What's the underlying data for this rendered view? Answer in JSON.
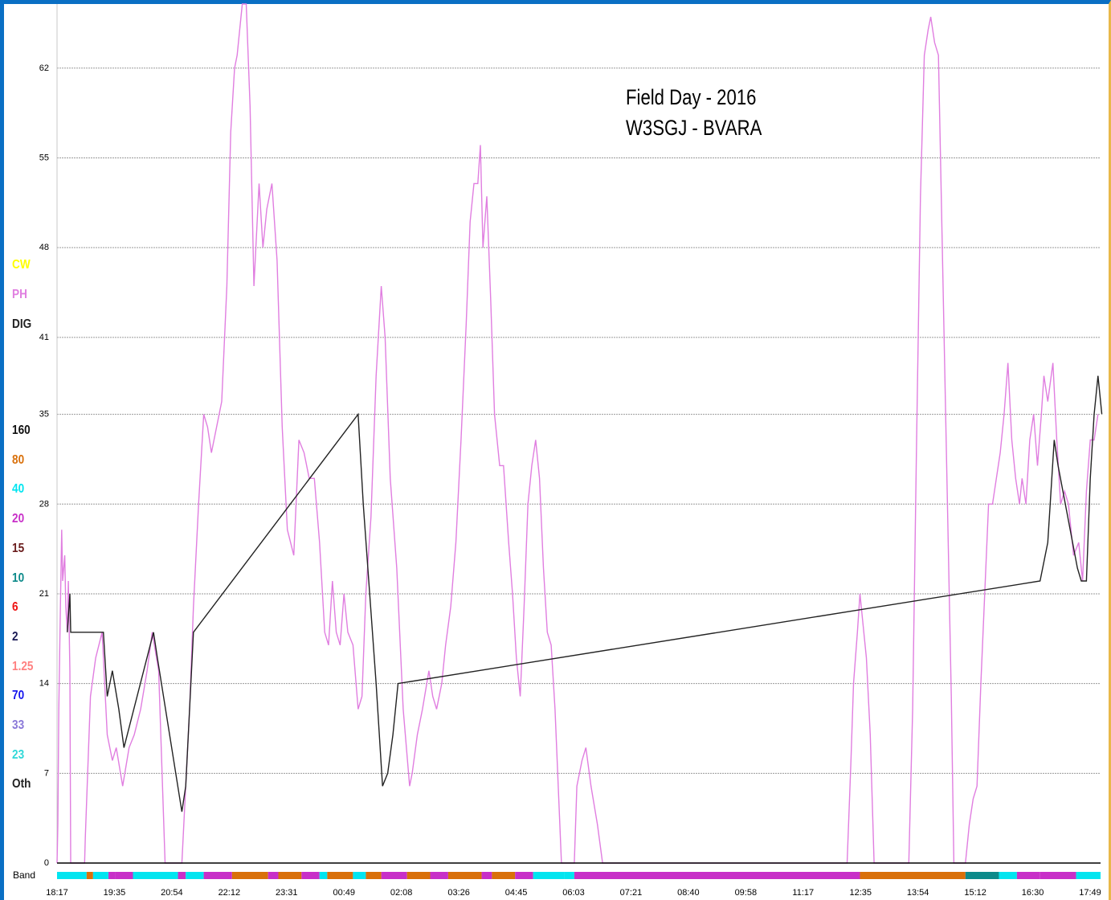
{
  "chart_data": {
    "type": "line",
    "title": "Field Day - 2016",
    "subtitle": "W3SGJ - BVARA",
    "xlabel": "",
    "ylabel": "",
    "ylim": [
      0,
      67
    ],
    "y_ticks": [
      0,
      7,
      14,
      21,
      28,
      35,
      41,
      48,
      55,
      62
    ],
    "x_tick_labels": [
      "18:17",
      "19:35",
      "20:54",
      "22:12",
      "23:31",
      "00:49",
      "02:08",
      "03:26",
      "04:45",
      "06:03",
      "07:21",
      "08:40",
      "09:58",
      "11:17",
      "12:35",
      "13:54",
      "15:12",
      "16:30",
      "17:49"
    ],
    "grid": true,
    "mode_legend": [
      {
        "label": "CW",
        "color": "#ffff00"
      },
      {
        "label": "PH",
        "color": "#e07ee0"
      },
      {
        "label": "DIG",
        "color": "#222222"
      }
    ],
    "band_legend": [
      {
        "label": "160",
        "color": "#111111"
      },
      {
        "label": "80",
        "color": "#d9700a"
      },
      {
        "label": "40",
        "color": "#00e5f0"
      },
      {
        "label": "20",
        "color": "#c82fc8"
      },
      {
        "label": "15",
        "color": "#6b1d1d"
      },
      {
        "label": "10",
        "color": "#0c8a8a"
      },
      {
        "label": "6",
        "color": "#ee1111"
      },
      {
        "label": "2",
        "color": "#1a1a55"
      },
      {
        "label": "1.25",
        "color": "#ff8080"
      },
      {
        "label": "70",
        "color": "#1515ee"
      },
      {
        "label": "33",
        "color": "#8a78d8"
      },
      {
        "label": "23",
        "color": "#30d8d8"
      },
      {
        "label": "Oth",
        "color": "#222222"
      }
    ],
    "band_axis_label": "Band",
    "series": [
      {
        "name": "PH",
        "color": "#e07ee0",
        "points": [
          [
            0,
            0
          ],
          [
            0.03,
            3
          ],
          [
            0.07,
            12
          ],
          [
            0.13,
            20
          ],
          [
            0.18,
            26
          ],
          [
            0.22,
            22
          ],
          [
            0.3,
            24
          ],
          [
            0.34,
            20
          ],
          [
            0.4,
            18
          ],
          [
            0.44,
            22
          ],
          [
            0.5,
            15
          ],
          [
            0.53,
            0
          ],
          [
            1.07,
            0
          ],
          [
            1.1,
            2
          ],
          [
            1.3,
            13
          ],
          [
            1.5,
            16
          ],
          [
            1.75,
            18
          ],
          [
            1.95,
            10
          ],
          [
            2.15,
            8
          ],
          [
            2.3,
            9
          ],
          [
            2.55,
            6
          ],
          [
            2.8,
            9
          ],
          [
            3.0,
            10
          ],
          [
            3.25,
            12
          ],
          [
            3.5,
            15
          ],
          [
            3.7,
            18
          ],
          [
            3.95,
            15
          ],
          [
            4.2,
            0
          ],
          [
            4.85,
            0
          ],
          [
            5.0,
            6
          ],
          [
            5.15,
            12
          ],
          [
            5.3,
            20
          ],
          [
            5.5,
            28
          ],
          [
            5.7,
            35
          ],
          [
            5.85,
            34
          ],
          [
            6.0,
            32
          ],
          [
            6.2,
            34
          ],
          [
            6.4,
            36
          ],
          [
            6.6,
            45
          ],
          [
            6.75,
            57
          ],
          [
            6.9,
            62
          ],
          [
            7.0,
            63
          ],
          [
            7.2,
            67
          ],
          [
            7.35,
            67
          ],
          [
            7.5,
            59
          ],
          [
            7.65,
            45
          ],
          [
            7.85,
            53
          ],
          [
            8.0,
            48
          ],
          [
            8.15,
            51
          ],
          [
            8.35,
            53
          ],
          [
            8.55,
            47
          ],
          [
            8.75,
            34
          ],
          [
            8.95,
            26
          ],
          [
            9.2,
            24
          ],
          [
            9.4,
            33
          ],
          [
            9.6,
            32
          ],
          [
            9.8,
            30
          ],
          [
            10.0,
            30
          ],
          [
            10.2,
            25
          ],
          [
            10.4,
            18
          ],
          [
            10.55,
            17
          ],
          [
            10.7,
            22
          ],
          [
            10.85,
            18
          ],
          [
            11.0,
            17
          ],
          [
            11.15,
            21
          ],
          [
            11.3,
            18
          ],
          [
            11.5,
            17
          ],
          [
            11.7,
            12
          ],
          [
            11.85,
            13
          ],
          [
            12.0,
            21
          ],
          [
            12.2,
            27
          ],
          [
            12.4,
            38
          ],
          [
            12.6,
            45
          ],
          [
            12.75,
            41
          ],
          [
            12.95,
            30
          ],
          [
            13.2,
            23
          ],
          [
            13.45,
            12
          ],
          [
            13.7,
            6
          ],
          [
            13.8,
            7
          ],
          [
            14.0,
            10
          ],
          [
            14.2,
            12
          ],
          [
            14.45,
            15
          ],
          [
            14.6,
            13
          ],
          [
            14.75,
            12
          ],
          [
            14.95,
            14
          ],
          [
            15.1,
            17
          ],
          [
            15.3,
            20
          ],
          [
            15.5,
            25
          ],
          [
            15.7,
            33
          ],
          [
            15.9,
            42
          ],
          [
            16.05,
            50
          ],
          [
            16.2,
            53
          ],
          [
            16.35,
            53
          ],
          [
            16.45,
            56
          ],
          [
            16.55,
            48
          ],
          [
            16.7,
            52
          ],
          [
            16.85,
            44
          ],
          [
            17.0,
            35
          ],
          [
            17.2,
            31
          ],
          [
            17.35,
            31
          ],
          [
            17.55,
            25
          ],
          [
            17.7,
            21
          ],
          [
            17.85,
            16
          ],
          [
            18.0,
            13
          ],
          [
            18.15,
            20
          ],
          [
            18.3,
            28
          ],
          [
            18.45,
            31
          ],
          [
            18.6,
            33
          ],
          [
            18.75,
            30
          ],
          [
            18.9,
            23
          ],
          [
            19.05,
            18
          ],
          [
            19.2,
            17
          ],
          [
            19.35,
            12
          ],
          [
            19.6,
            0
          ],
          [
            20.1,
            0
          ],
          [
            20.2,
            6
          ],
          [
            20.4,
            8
          ],
          [
            20.55,
            9
          ],
          [
            20.75,
            6
          ],
          [
            21.0,
            3
          ],
          [
            21.2,
            0
          ],
          [
            30.7,
            0
          ],
          [
            30.85,
            8
          ],
          [
            30.95,
            14
          ],
          [
            31.1,
            18
          ],
          [
            31.2,
            21
          ],
          [
            31.3,
            19
          ],
          [
            31.45,
            16
          ],
          [
            31.6,
            10
          ],
          [
            31.75,
            0
          ],
          [
            33.1,
            0
          ],
          [
            33.25,
            12
          ],
          [
            33.4,
            33
          ],
          [
            33.55,
            52
          ],
          [
            33.7,
            63
          ],
          [
            33.85,
            65
          ],
          [
            33.95,
            66
          ],
          [
            34.1,
            64
          ],
          [
            34.25,
            63
          ],
          [
            34.4,
            48
          ],
          [
            34.6,
            28
          ],
          [
            34.75,
            13
          ],
          [
            34.85,
            0
          ],
          [
            35.3,
            0
          ],
          [
            35.45,
            3
          ],
          [
            35.6,
            5
          ],
          [
            35.75,
            6
          ],
          [
            35.9,
            14
          ],
          [
            36.05,
            21
          ],
          [
            36.2,
            28
          ],
          [
            36.35,
            28
          ],
          [
            36.5,
            30
          ],
          [
            36.65,
            32
          ],
          [
            36.8,
            35
          ],
          [
            36.95,
            39
          ],
          [
            37.1,
            33
          ],
          [
            37.25,
            30
          ],
          [
            37.4,
            28
          ],
          [
            37.5,
            30
          ],
          [
            37.65,
            28
          ],
          [
            37.8,
            33
          ],
          [
            37.95,
            35
          ],
          [
            38.1,
            31
          ],
          [
            38.25,
            35
          ],
          [
            38.35,
            38
          ],
          [
            38.5,
            36
          ],
          [
            38.7,
            39
          ],
          [
            38.85,
            33
          ],
          [
            39.0,
            28
          ],
          [
            39.15,
            29
          ],
          [
            39.3,
            28
          ],
          [
            39.5,
            24
          ],
          [
            39.7,
            25
          ],
          [
            39.85,
            22
          ],
          [
            40.0,
            29
          ],
          [
            40.15,
            33
          ],
          [
            40.3,
            33
          ],
          [
            40.45,
            35
          ]
        ]
      },
      {
        "name": "DIG",
        "color": "#222222",
        "points": [
          [
            0.4,
            18
          ],
          [
            0.5,
            21
          ],
          [
            0.53,
            18
          ],
          [
            1.8,
            18
          ],
          [
            1.95,
            13
          ],
          [
            2.15,
            15
          ],
          [
            2.4,
            12
          ],
          [
            2.6,
            9
          ],
          [
            3.75,
            18
          ],
          [
            3.9,
            16
          ],
          [
            4.85,
            4
          ],
          [
            5.0,
            6
          ],
          [
            5.15,
            12
          ],
          [
            5.3,
            18
          ],
          [
            11.7,
            35
          ],
          [
            11.9,
            28
          ],
          [
            12.15,
            21
          ],
          [
            12.4,
            14
          ],
          [
            12.65,
            6
          ],
          [
            12.85,
            7
          ],
          [
            13.05,
            10
          ],
          [
            13.25,
            14
          ],
          [
            38.2,
            22
          ],
          [
            38.5,
            25
          ],
          [
            38.75,
            33
          ],
          [
            38.9,
            31
          ],
          [
            39.65,
            23
          ],
          [
            39.8,
            22
          ],
          [
            40.0,
            22
          ],
          [
            40.15,
            30
          ],
          [
            40.3,
            35
          ],
          [
            40.45,
            38
          ],
          [
            40.6,
            35
          ]
        ]
      }
    ],
    "band_strip": [
      [
        0,
        1.15,
        "#00e5f0"
      ],
      [
        1.15,
        1.4,
        "#d9700a"
      ],
      [
        1.4,
        2.0,
        "#00e5f0"
      ],
      [
        2.0,
        2.25,
        "#c82fc8"
      ],
      [
        2.25,
        2.95,
        "#c82fc8"
      ],
      [
        2.95,
        4.7,
        "#00e5f0"
      ],
      [
        4.7,
        5.0,
        "#c82fc8"
      ],
      [
        5.0,
        5.7,
        "#00e5f0"
      ],
      [
        5.7,
        6.8,
        "#c82fc8"
      ],
      [
        6.8,
        8.2,
        "#d9700a"
      ],
      [
        8.2,
        8.6,
        "#c82fc8"
      ],
      [
        8.6,
        9.5,
        "#d9700a"
      ],
      [
        9.5,
        10.2,
        "#c82fc8"
      ],
      [
        10.2,
        10.5,
        "#00e5f0"
      ],
      [
        10.5,
        11.5,
        "#d9700a"
      ],
      [
        11.5,
        12.0,
        "#00e5f0"
      ],
      [
        12.0,
        12.6,
        "#d9700a"
      ],
      [
        12.6,
        13.6,
        "#c82fc8"
      ],
      [
        13.6,
        14.5,
        "#d9700a"
      ],
      [
        14.5,
        15.2,
        "#c82fc8"
      ],
      [
        15.2,
        16.5,
        "#d9700a"
      ],
      [
        16.5,
        16.9,
        "#c82fc8"
      ],
      [
        16.9,
        17.8,
        "#d9700a"
      ],
      [
        17.8,
        18.5,
        "#c82fc8"
      ],
      [
        18.5,
        19.7,
        "#00e5f0"
      ],
      [
        19.7,
        20.1,
        "#00e5f0"
      ],
      [
        20.1,
        31.2,
        "#c82fc8"
      ],
      [
        31.2,
        35.3,
        "#d9700a"
      ],
      [
        35.3,
        36.6,
        "#0c8a8a"
      ],
      [
        36.6,
        37.3,
        "#00e5f0"
      ],
      [
        37.3,
        38.2,
        "#c82fc8"
      ],
      [
        38.2,
        39.6,
        "#c82fc8"
      ],
      [
        39.6,
        40.55,
        "#00e5f0"
      ]
    ]
  }
}
